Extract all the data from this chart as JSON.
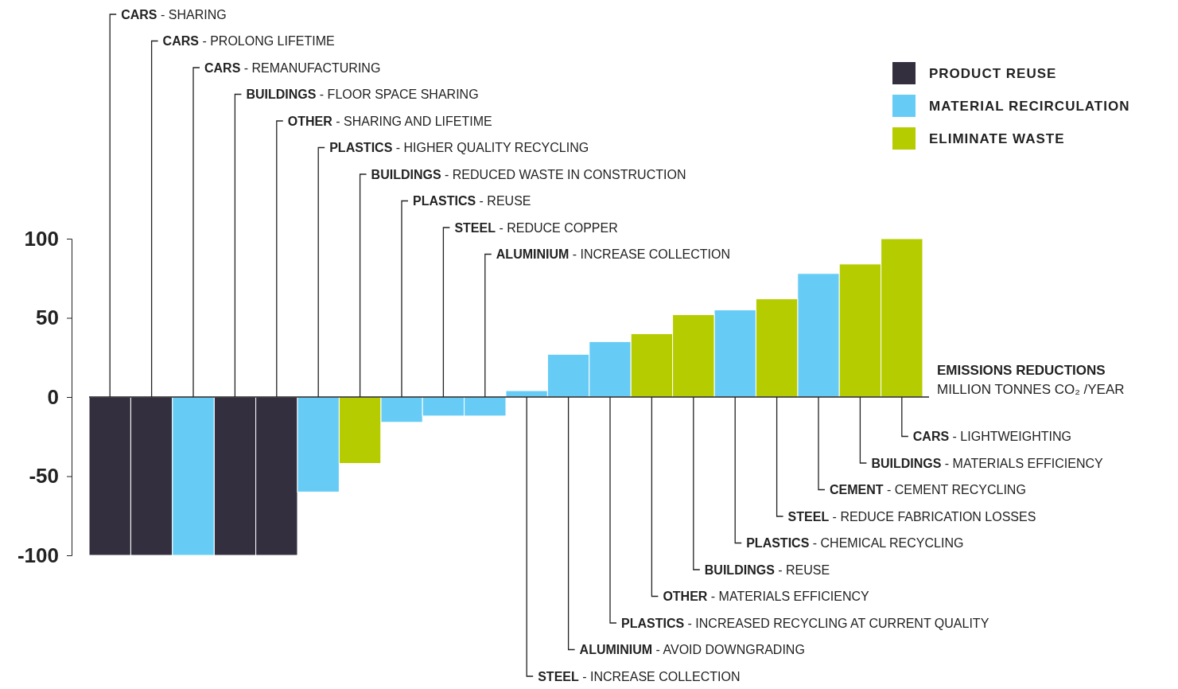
{
  "chart_data": {
    "type": "bar",
    "xlabel": "EMISSIONS REDUCTIONS",
    "annotations": [
      "MILLION TONNES CO₂ /YEAR",
      "CARS - SHARING",
      "CARS - PROLONG LIFETIME",
      "CARS - REMANUFACTURING",
      "BUILDINGS - FLOOR SPACE SHARING",
      "OTHER - SHARING AND LIFETIME",
      "PLASTICS - HIGHER QUALITY RECYCLING",
      "BUILDINGS - REDUCED WASTE IN CONSTRUCTION",
      "PLASTICS - REUSE",
      "STEEL - REDUCE COPPER",
      "ALUMINIUM - INCREASE COLLECTION",
      "STEEL - INCREASE COLLECTION",
      "ALUMINIUM - AVOID DOWNGRADING",
      "PLASTICS - INCREASED RECYCLING AT CURRENT QUALITY",
      "OTHER - MATERIALS EFFICIENCY",
      "BUILDINGS - REUSE",
      "PLASTICS - CHEMICAL RECYCLING",
      "STEEL - REDUCE FABRICATION LOSSES",
      "CEMENT - CEMENT RECYCLING",
      "BUILDINGS - MATERIALS EFFICIENCY",
      "CARS - LIGHTWEIGHTING"
    ],
    "categories": [
      null,
      null,
      null,
      null,
      null,
      null,
      null,
      null,
      null,
      null,
      null,
      null,
      null,
      null,
      null,
      null,
      null,
      null,
      null,
      null
    ],
    "series": [
      {
        "name": "PRODUCT REUSE",
        "color": "#332f3f",
        "values": [
          -100,
          -100,
          null,
          -100,
          -100,
          null,
          null,
          null,
          null,
          null,
          null,
          null,
          null,
          null,
          null,
          null,
          null,
          null,
          null,
          null
        ]
      },
      {
        "name": "MATERIAL RECIRCULATION",
        "color": "#66ccf5",
        "values": [
          null,
          null,
          -100,
          null,
          null,
          -60,
          null,
          -16,
          -12,
          -12,
          4,
          27,
          35,
          null,
          null,
          55,
          null,
          78,
          null,
          null
        ]
      },
      {
        "name": "ELIMINATE WASTE",
        "color": "#b5cc00",
        "values": [
          null,
          null,
          null,
          null,
          null,
          null,
          -42,
          null,
          null,
          null,
          null,
          null,
          null,
          40,
          52,
          null,
          62,
          null,
          84,
          100
        ]
      }
    ],
    "ylim": [
      -100,
      100
    ],
    "yticks": [
      -100,
      -50,
      0,
      50,
      100
    ],
    "legend": "top right"
  }
}
